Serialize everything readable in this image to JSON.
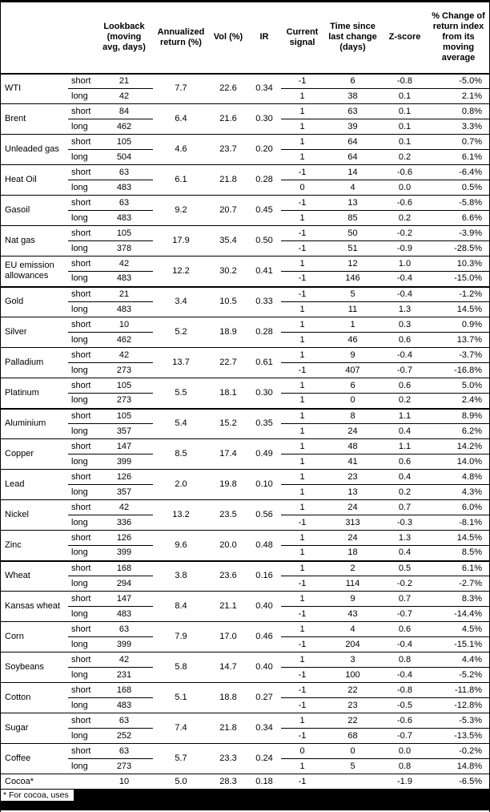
{
  "page": {
    "footnote": "* For cocoa, uses"
  },
  "table": {
    "headers": {
      "commodity": "",
      "horizon": "",
      "lookback": "Lookback\n(moving\navg, days)",
      "annualized_return": "Annualized\nreturn (%)",
      "vol": "Vol (%)",
      "ir": "IR",
      "current_signal": "Current\nsignal",
      "time_since": "Time since\nlast change\n(days)",
      "z_score": "Z-score",
      "pct_change": "% Change of\nreturn index\nfrom its\nmoving\naverage"
    },
    "commodities": [
      {
        "commodity": "WTI",
        "annualized_return": "7.7",
        "vol": "22.6",
        "ir": "0.34",
        "section_end": false,
        "rows": [
          {
            "horizon": "short",
            "lookback": "21",
            "signal": "-1",
            "time_since": "6",
            "z_score": "-0.8",
            "pct_change": "-5.0%"
          },
          {
            "horizon": "long",
            "lookback": "42",
            "signal": "1",
            "time_since": "38",
            "z_score": "0.1",
            "pct_change": "2.1%"
          }
        ]
      },
      {
        "commodity": "Brent",
        "annualized_return": "6.4",
        "vol": "21.6",
        "ir": "0.30",
        "section_end": false,
        "rows": [
          {
            "horizon": "short",
            "lookback": "84",
            "signal": "1",
            "time_since": "63",
            "z_score": "0.1",
            "pct_change": "0.8%"
          },
          {
            "horizon": "long",
            "lookback": "462",
            "signal": "1",
            "time_since": "39",
            "z_score": "0.1",
            "pct_change": "3.3%"
          }
        ]
      },
      {
        "commodity": "Unleaded gas",
        "annualized_return": "4.6",
        "vol": "23.7",
        "ir": "0.20",
        "section_end": false,
        "rows": [
          {
            "horizon": "short",
            "lookback": "105",
            "signal": "1",
            "time_since": "64",
            "z_score": "0.1",
            "pct_change": "0.7%"
          },
          {
            "horizon": "long",
            "lookback": "504",
            "signal": "1",
            "time_since": "64",
            "z_score": "0.2",
            "pct_change": "6.1%"
          }
        ]
      },
      {
        "commodity": "Heat Oil",
        "annualized_return": "6.1",
        "vol": "21.8",
        "ir": "0.28",
        "section_end": false,
        "rows": [
          {
            "horizon": "short",
            "lookback": "63",
            "signal": "-1",
            "time_since": "14",
            "z_score": "-0.6",
            "pct_change": "-6.4%"
          },
          {
            "horizon": "long",
            "lookback": "483",
            "signal": "0",
            "time_since": "4",
            "z_score": "0.0",
            "pct_change": "0.5%"
          }
        ]
      },
      {
        "commodity": "Gasoil",
        "annualized_return": "9.2",
        "vol": "20.7",
        "ir": "0.45",
        "section_end": false,
        "rows": [
          {
            "horizon": "short",
            "lookback": "63",
            "signal": "-1",
            "time_since": "13",
            "z_score": "-0.6",
            "pct_change": "-5.8%"
          },
          {
            "horizon": "long",
            "lookback": "483",
            "signal": "1",
            "time_since": "85",
            "z_score": "0.2",
            "pct_change": "6.6%"
          }
        ]
      },
      {
        "commodity": "Nat gas",
        "annualized_return": "17.9",
        "vol": "35.4",
        "ir": "0.50",
        "section_end": false,
        "rows": [
          {
            "horizon": "short",
            "lookback": "105",
            "signal": "-1",
            "time_since": "50",
            "z_score": "-0.2",
            "pct_change": "-3.9%"
          },
          {
            "horizon": "long",
            "lookback": "378",
            "signal": "-1",
            "time_since": "51",
            "z_score": "-0.9",
            "pct_change": "-28.5%"
          }
        ]
      },
      {
        "commodity": "EU emission allowances",
        "annualized_return": "12.2",
        "vol": "30.2",
        "ir": "0.41",
        "section_end": true,
        "rows": [
          {
            "horizon": "short",
            "lookback": "42",
            "signal": "1",
            "time_since": "12",
            "z_score": "1.0",
            "pct_change": "10.3%"
          },
          {
            "horizon": "long",
            "lookback": "483",
            "signal": "-1",
            "time_since": "146",
            "z_score": "-0.4",
            "pct_change": "-15.0%"
          }
        ]
      },
      {
        "commodity": "Gold",
        "annualized_return": "3.4",
        "vol": "10.5",
        "ir": "0.33",
        "section_end": false,
        "rows": [
          {
            "horizon": "short",
            "lookback": "21",
            "signal": "-1",
            "time_since": "5",
            "z_score": "-0.4",
            "pct_change": "-1.2%"
          },
          {
            "horizon": "long",
            "lookback": "483",
            "signal": "1",
            "time_since": "11",
            "z_score": "1.3",
            "pct_change": "14.5%"
          }
        ]
      },
      {
        "commodity": "Silver",
        "annualized_return": "5.2",
        "vol": "18.9",
        "ir": "0.28",
        "section_end": false,
        "rows": [
          {
            "horizon": "short",
            "lookback": "10",
            "signal": "1",
            "time_since": "1",
            "z_score": "0.3",
            "pct_change": "0.9%"
          },
          {
            "horizon": "long",
            "lookback": "462",
            "signal": "1",
            "time_since": "46",
            "z_score": "0.6",
            "pct_change": "13.7%"
          }
        ]
      },
      {
        "commodity": "Palladium",
        "annualized_return": "13.7",
        "vol": "22.7",
        "ir": "0.61",
        "section_end": false,
        "rows": [
          {
            "horizon": "short",
            "lookback": "42",
            "signal": "1",
            "time_since": "9",
            "z_score": "-0.4",
            "pct_change": "-3.7%"
          },
          {
            "horizon": "long",
            "lookback": "273",
            "signal": "-1",
            "time_since": "407",
            "z_score": "-0.7",
            "pct_change": "-16.8%"
          }
        ]
      },
      {
        "commodity": "Platinum",
        "annualized_return": "5.5",
        "vol": "18.1",
        "ir": "0.30",
        "section_end": true,
        "rows": [
          {
            "horizon": "short",
            "lookback": "105",
            "signal": "1",
            "time_since": "6",
            "z_score": "0.6",
            "pct_change": "5.0%"
          },
          {
            "horizon": "long",
            "lookback": "273",
            "signal": "1",
            "time_since": "0",
            "z_score": "0.2",
            "pct_change": "2.4%"
          }
        ]
      },
      {
        "commodity": "Aluminium",
        "annualized_return": "5.4",
        "vol": "15.2",
        "ir": "0.35",
        "section_end": false,
        "rows": [
          {
            "horizon": "short",
            "lookback": "105",
            "signal": "1",
            "time_since": "8",
            "z_score": "1.1",
            "pct_change": "8.9%"
          },
          {
            "horizon": "long",
            "lookback": "357",
            "signal": "1",
            "time_since": "24",
            "z_score": "0.4",
            "pct_change": "6.2%"
          }
        ]
      },
      {
        "commodity": "Copper",
        "annualized_return": "8.5",
        "vol": "17.4",
        "ir": "0.49",
        "section_end": false,
        "rows": [
          {
            "horizon": "short",
            "lookback": "147",
            "signal": "1",
            "time_since": "48",
            "z_score": "1.1",
            "pct_change": "14.2%"
          },
          {
            "horizon": "long",
            "lookback": "399",
            "signal": "1",
            "time_since": "41",
            "z_score": "0.6",
            "pct_change": "14.0%"
          }
        ]
      },
      {
        "commodity": "Lead",
        "annualized_return": "2.0",
        "vol": "19.8",
        "ir": "0.10",
        "section_end": false,
        "rows": [
          {
            "horizon": "short",
            "lookback": "126",
            "signal": "1",
            "time_since": "23",
            "z_score": "0.4",
            "pct_change": "4.8%"
          },
          {
            "horizon": "long",
            "lookback": "357",
            "signal": "1",
            "time_since": "13",
            "z_score": "0.2",
            "pct_change": "4.3%"
          }
        ]
      },
      {
        "commodity": "Nickel",
        "annualized_return": "13.2",
        "vol": "23.5",
        "ir": "0.56",
        "section_end": false,
        "rows": [
          {
            "horizon": "short",
            "lookback": "42",
            "signal": "1",
            "time_since": "24",
            "z_score": "0.7",
            "pct_change": "6.0%"
          },
          {
            "horizon": "long",
            "lookback": "336",
            "signal": "-1",
            "time_since": "313",
            "z_score": "-0.3",
            "pct_change": "-8.1%"
          }
        ]
      },
      {
        "commodity": "Zinc",
        "annualized_return": "9.6",
        "vol": "20.0",
        "ir": "0.48",
        "section_end": true,
        "rows": [
          {
            "horizon": "short",
            "lookback": "126",
            "signal": "1",
            "time_since": "24",
            "z_score": "1.3",
            "pct_change": "14.5%"
          },
          {
            "horizon": "long",
            "lookback": "399",
            "signal": "1",
            "time_since": "18",
            "z_score": "0.4",
            "pct_change": "8.5%"
          }
        ]
      },
      {
        "commodity": "Wheat",
        "annualized_return": "3.8",
        "vol": "23.6",
        "ir": "0.16",
        "section_end": false,
        "rows": [
          {
            "horizon": "short",
            "lookback": "168",
            "signal": "1",
            "time_since": "2",
            "z_score": "0.5",
            "pct_change": "6.1%"
          },
          {
            "horizon": "long",
            "lookback": "294",
            "signal": "-1",
            "time_since": "114",
            "z_score": "-0.2",
            "pct_change": "-2.7%"
          }
        ]
      },
      {
        "commodity": "Kansas wheat",
        "annualized_return": "8.4",
        "vol": "21.1",
        "ir": "0.40",
        "section_end": false,
        "rows": [
          {
            "horizon": "short",
            "lookback": "147",
            "signal": "1",
            "time_since": "9",
            "z_score": "0.7",
            "pct_change": "8.3%"
          },
          {
            "horizon": "long",
            "lookback": "483",
            "signal": "-1",
            "time_since": "43",
            "z_score": "-0.7",
            "pct_change": "-14.4%"
          }
        ]
      },
      {
        "commodity": "Corn",
        "annualized_return": "7.9",
        "vol": "17.0",
        "ir": "0.46",
        "section_end": false,
        "rows": [
          {
            "horizon": "short",
            "lookback": "63",
            "signal": "1",
            "time_since": "4",
            "z_score": "0.6",
            "pct_change": "4.5%"
          },
          {
            "horizon": "long",
            "lookback": "399",
            "signal": "-1",
            "time_since": "204",
            "z_score": "-0.4",
            "pct_change": "-15.1%"
          }
        ]
      },
      {
        "commodity": "Soybeans",
        "annualized_return": "5.8",
        "vol": "14.7",
        "ir": "0.40",
        "section_end": false,
        "rows": [
          {
            "horizon": "short",
            "lookback": "42",
            "signal": "1",
            "time_since": "3",
            "z_score": "0.8",
            "pct_change": "4.4%"
          },
          {
            "horizon": "long",
            "lookback": "231",
            "signal": "-1",
            "time_since": "100",
            "z_score": "-0.4",
            "pct_change": "-5.2%"
          }
        ]
      },
      {
        "commodity": "Cotton",
        "annualized_return": "5.1",
        "vol": "18.8",
        "ir": "0.27",
        "section_end": false,
        "rows": [
          {
            "horizon": "short",
            "lookback": "168",
            "signal": "-1",
            "time_since": "22",
            "z_score": "-0.8",
            "pct_change": "-11.8%"
          },
          {
            "horizon": "long",
            "lookback": "483",
            "signal": "-1",
            "time_since": "23",
            "z_score": "-0.5",
            "pct_change": "-12.8%"
          }
        ]
      },
      {
        "commodity": "Sugar",
        "annualized_return": "7.4",
        "vol": "21.8",
        "ir": "0.34",
        "section_end": false,
        "rows": [
          {
            "horizon": "short",
            "lookback": "63",
            "signal": "1",
            "time_since": "22",
            "z_score": "-0.6",
            "pct_change": "-5.3%"
          },
          {
            "horizon": "long",
            "lookback": "252",
            "signal": "-1",
            "time_since": "68",
            "z_score": "-0.7",
            "pct_change": "-13.5%"
          }
        ]
      },
      {
        "commodity": "Coffee",
        "annualized_return": "5.7",
        "vol": "23.3",
        "ir": "0.24",
        "section_end": false,
        "rows": [
          {
            "horizon": "short",
            "lookback": "63",
            "signal": "0",
            "time_since": "0",
            "z_score": "0.0",
            "pct_change": "-0.2%"
          },
          {
            "horizon": "long",
            "lookback": "273",
            "signal": "1",
            "time_since": "5",
            "z_score": "0.8",
            "pct_change": "14.8%"
          }
        ]
      },
      {
        "commodity": "Cocoa*",
        "annualized_return": "5.0",
        "vol": "28.3",
        "ir": "0.18",
        "section_end": false,
        "rows": [
          {
            "horizon": "",
            "lookback": "10",
            "signal": "-1",
            "time_since": "",
            "z_score": "-1.9",
            "pct_change": "-6.5%"
          }
        ]
      }
    ]
  }
}
